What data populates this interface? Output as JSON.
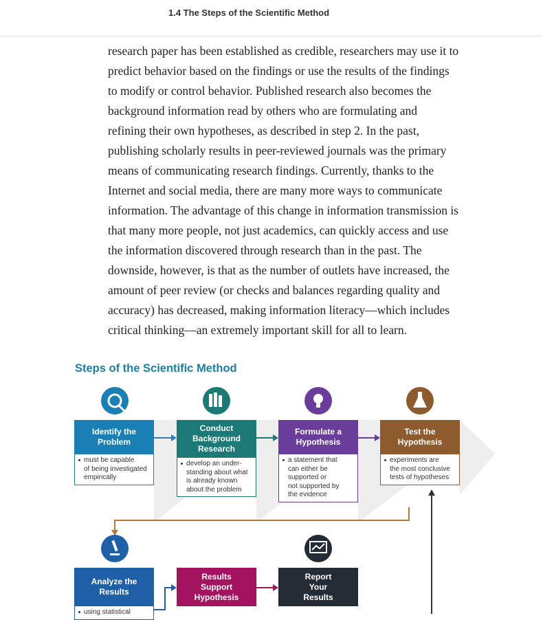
{
  "header": {
    "title": "1.4 The Steps of the Scientific Method"
  },
  "paragraph": {
    "lines": [
      "research paper has been established as credible, researchers may use it to",
      "predict behavior based on the findings or use the results of the findings",
      "to modify or control behavior. Published research also becomes the",
      "background information read by others who are formulating and",
      "refining their own hypotheses, as described in step 2. In the past,",
      "publishing scholarly results in peer-reviewed journals was the primary",
      "means of communicating research findings. Currently, thanks to the",
      "Internet and social media, there are many more ways to communicate",
      "information. The advantage of this change in information transmission is",
      "that many more people, not just academics, can quickly access and use",
      "the information discovered through research than in the past. The",
      "downside, however, is that as the number of outlets have increased, the",
      "amount of peer review (or checks and balances regarding quality and",
      "accuracy) has decreased, making information literacy—which includes",
      "critical thinking—an extremely important skill for all to learn."
    ]
  },
  "figure": {
    "title": "Steps of the Scientific Method",
    "steps": [
      {
        "label": [
          "Identify the",
          "Problem"
        ],
        "note": [
          "must be capable",
          "of being investigated",
          "empirically"
        ]
      },
      {
        "label": [
          "Conduct",
          "Background",
          "Research"
        ],
        "note": [
          "develop an under-",
          "standing about what",
          "is already known",
          "about the problem"
        ]
      },
      {
        "label": [
          "Formulate a",
          "Hypothesis"
        ],
        "note": [
          "a statement that",
          "can either be",
          "supported or",
          "not supported by",
          "the evidence"
        ]
      },
      {
        "label": [
          "Test the",
          "Hypothesis"
        ],
        "note": [
          "experiments are",
          "the most conclusive",
          "tests of hypotheses"
        ]
      },
      {
        "label": [
          "Analyze the",
          "Results"
        ],
        "note": [
          "using statistical"
        ]
      },
      {
        "label": [
          "Results",
          "Support",
          "Hypothesis"
        ]
      },
      {
        "label": [
          "Report",
          "Your",
          "Results"
        ]
      }
    ]
  }
}
